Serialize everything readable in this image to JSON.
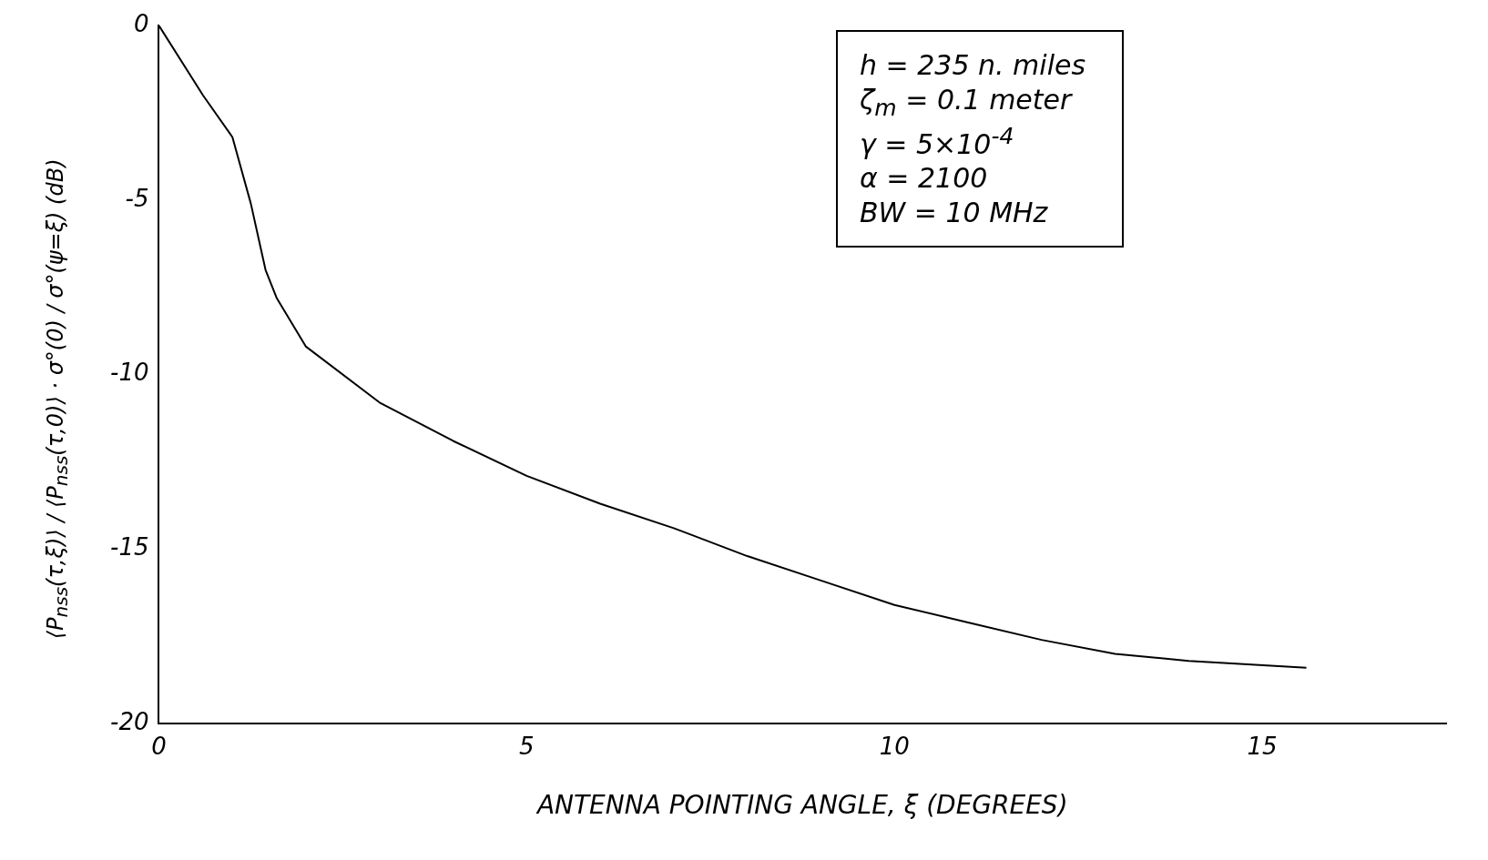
{
  "chart_data": {
    "type": "line",
    "xlabel": "ANTENNA POINTING ANGLE, ξ (DEGREES)",
    "ylabel": "⟨P$_{nss}$(τ,ξ)⟩ / ⟨P$_{nss}$(τ,0)⟩ · σ°(0) / σ°(ψ=ξ)   (dB)",
    "annotations": [
      "h = 235 n. miles",
      "ζ$_{m}$ = 0.1 meter",
      "γ = 5×10$^{-4}$",
      "α = 2100",
      "BW = 10 MHz"
    ],
    "x": [
      0,
      0.6,
      1,
      1.25,
      1.45,
      1.6,
      2,
      3,
      4,
      5,
      6,
      7,
      8,
      9,
      10,
      11,
      12,
      13,
      14,
      15.6
    ],
    "series": [
      {
        "color": "#000000",
        "values": [
          0,
          -2,
          -3.2,
          -5.1,
          -7,
          -7.8,
          -9.2,
          -10.8,
          -11.9,
          -12.9,
          -13.7,
          -14.4,
          -15.2,
          -15.9,
          -16.6,
          -17.1,
          -17.6,
          -18,
          -18.2,
          -18.4
        ]
      }
    ],
    "xlim": [
      0,
      17.5
    ],
    "xticks": [
      0,
      5,
      10,
      15
    ],
    "ylim": [
      -20,
      0
    ],
    "yticks": [
      0,
      -5,
      -10,
      -15,
      -20
    ],
    "grid": false,
    "legend": false,
    "marker": "none",
    "line_style": "solid"
  }
}
